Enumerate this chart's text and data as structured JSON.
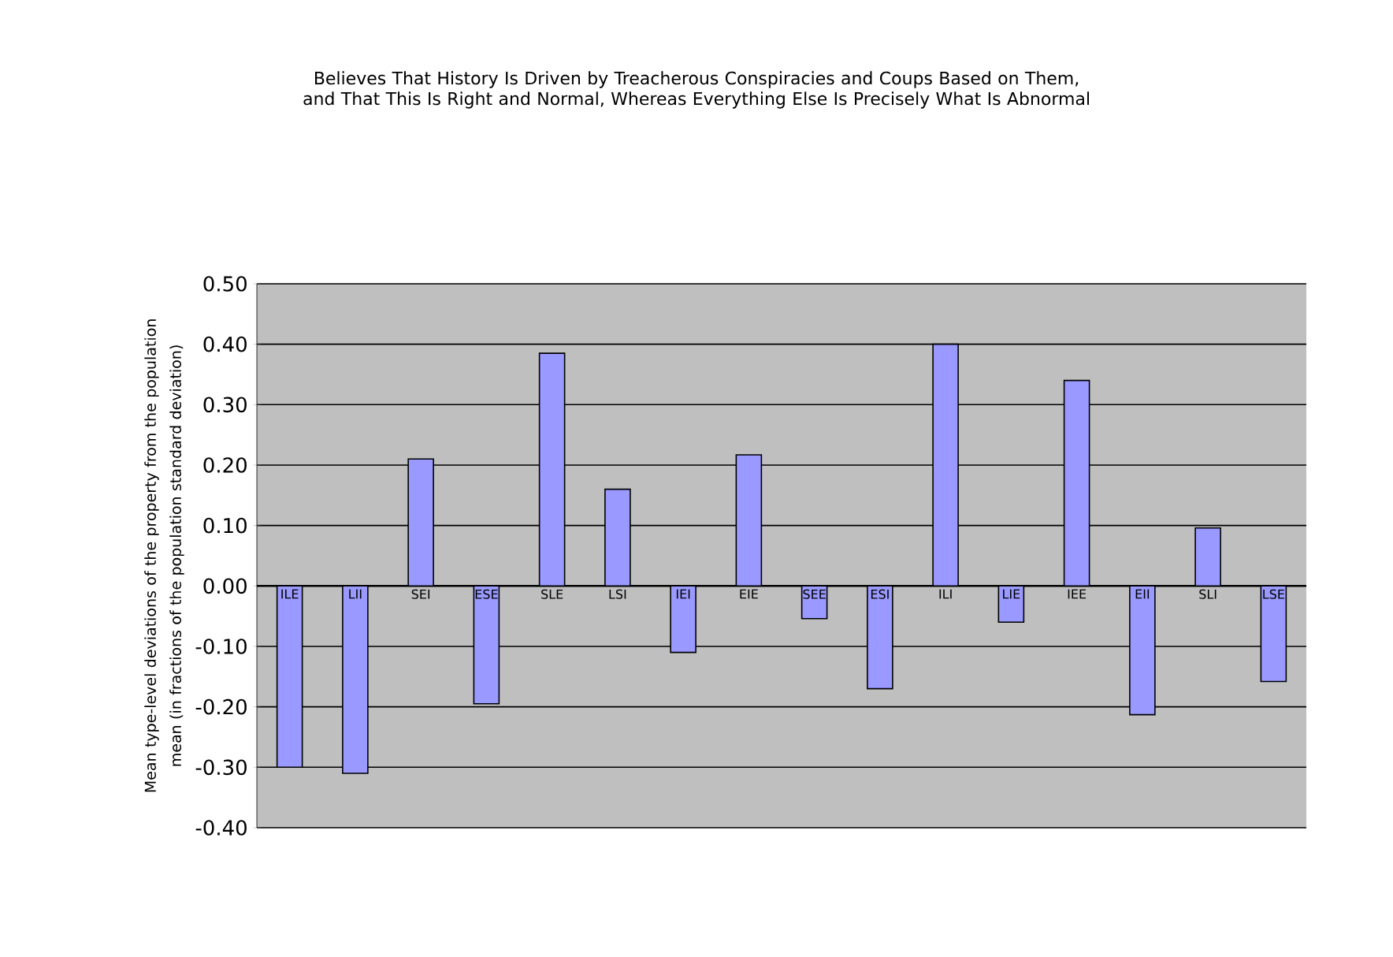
{
  "chart_data": {
    "type": "bar",
    "title": "Believes That History Is Driven by Treacherous Conspiracies and Coups Based on Them, and That This Is Right and Normal, Whereas Everything Else Is Precisely What Is Abnormal",
    "ylabel": "Mean type-level deviations of the property from the population mean (in fractions of the population standard deviation)",
    "categories": [
      "ILE",
      "LII",
      "SEI",
      "ESE",
      "SLE",
      "LSI",
      "IEI",
      "EIE",
      "SEE",
      "ESI",
      "ILI",
      "LIE",
      "IEE",
      "EII",
      "SLI",
      "LSE"
    ],
    "values": [
      -0.3,
      -0.31,
      0.21,
      -0.195,
      0.385,
      0.16,
      -0.11,
      0.217,
      -0.054,
      -0.17,
      0.4,
      -0.06,
      0.34,
      -0.213,
      0.096,
      -0.158
    ],
    "color": "#9999ff",
    "ylim": [
      -0.4,
      0.5
    ],
    "yticks": [
      {
        "value": -0.4,
        "label": "-0.40"
      },
      {
        "value": -0.3,
        "label": "-0.30"
      },
      {
        "value": -0.2,
        "label": "-0.20"
      },
      {
        "value": -0.1,
        "label": "-0.10"
      },
      {
        "value": 0,
        "label": "0.00"
      },
      {
        "value": 0.1,
        "label": "0.10"
      },
      {
        "value": 0.2,
        "label": "0.20"
      },
      {
        "value": 0.3,
        "label": "0.30"
      },
      {
        "value": 0.4,
        "label": "0.40"
      },
      {
        "value": 0.5,
        "label": "0.50"
      }
    ],
    "grid": "y"
  }
}
